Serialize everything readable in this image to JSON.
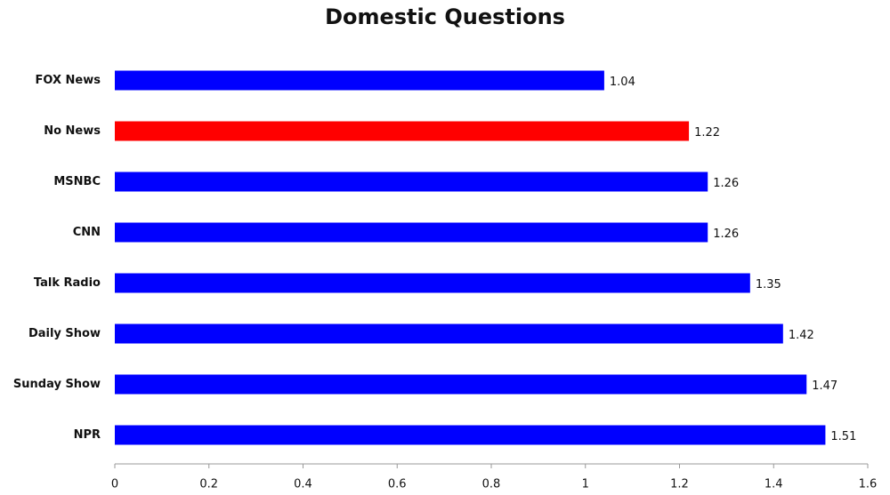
{
  "chart_data": {
    "type": "barh",
    "title": "Domestic Questions",
    "categories": [
      "FOX News",
      "No News",
      "MSNBC",
      "CNN",
      "Talk Radio",
      "Daily Show",
      "Sunday Show",
      "NPR"
    ],
    "values": [
      1.04,
      1.22,
      1.26,
      1.26,
      1.35,
      1.42,
      1.47,
      1.51
    ],
    "colors": [
      "#0000ff",
      "#ff0000",
      "#0000ff",
      "#0000ff",
      "#0000ff",
      "#0000ff",
      "#0000ff",
      "#0000ff"
    ],
    "xlim": [
      0,
      1.6
    ],
    "xticks": [
      0,
      0.2,
      0.4,
      0.6,
      0.8,
      1,
      1.2,
      1.4,
      1.6
    ]
  }
}
